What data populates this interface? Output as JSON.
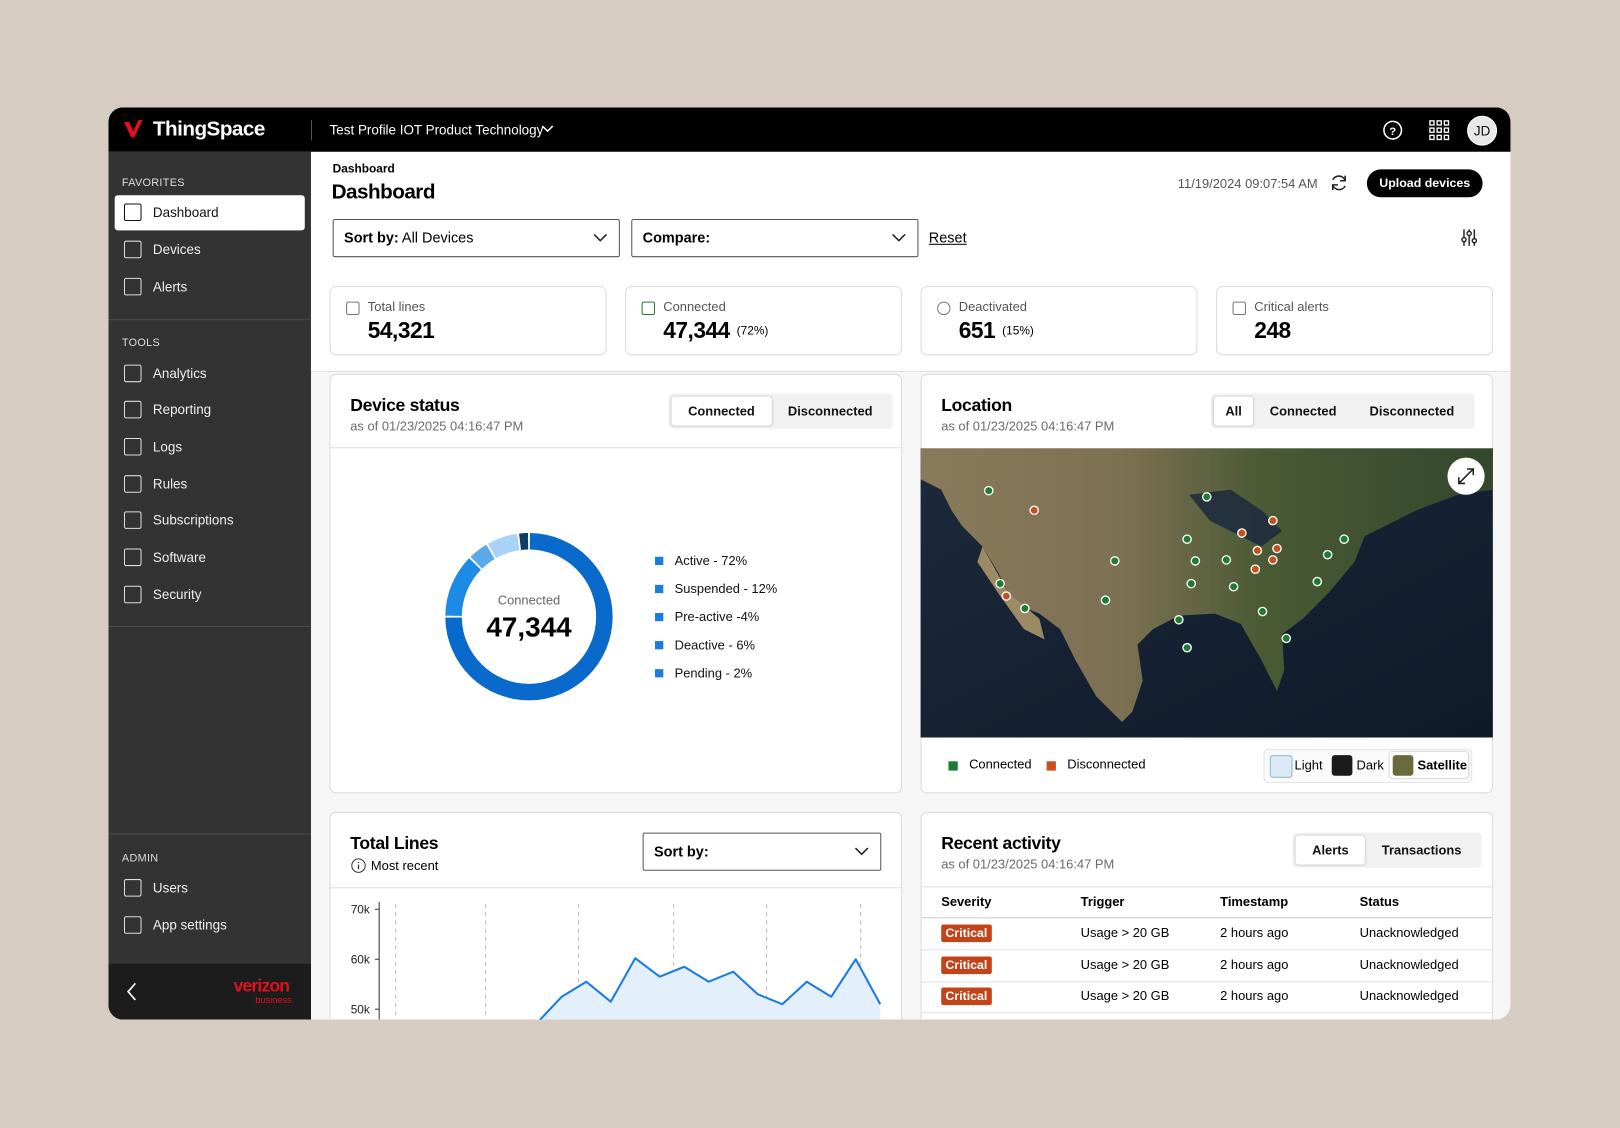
{
  "header": {
    "brand": "ThingSpace",
    "profile": "Test Profile IOT Product Technology",
    "avatar": "JD"
  },
  "sidebar": {
    "sections": [
      {
        "title": "FAVORITES",
        "items": [
          {
            "label": "Dashboard",
            "active": true
          },
          {
            "label": "Devices"
          },
          {
            "label": "Alerts"
          }
        ]
      },
      {
        "title": "TOOLS",
        "items": [
          {
            "label": "Analytics"
          },
          {
            "label": "Reporting"
          },
          {
            "label": "Logs"
          },
          {
            "label": "Rules"
          },
          {
            "label": "Subscriptions"
          },
          {
            "label": "Software"
          },
          {
            "label": "Security"
          }
        ]
      },
      {
        "title": "ADMIN",
        "items": [
          {
            "label": "Users"
          },
          {
            "label": "App settings"
          }
        ]
      }
    ],
    "footer_brand": "verizon",
    "footer_sub": "business"
  },
  "page": {
    "breadcrumb": "Dashboard",
    "title": "Dashboard",
    "timestamp": "11/19/2024 09:07:54 AM",
    "upload": "Upload devices",
    "sort_label": "Sort by:",
    "sort_value": "All Devices",
    "compare_label": "Compare:",
    "reset": "Reset"
  },
  "stats": [
    {
      "label": "Total lines",
      "value": "54,321"
    },
    {
      "label": "Connected",
      "value": "47,344",
      "note": "(72%)"
    },
    {
      "label": "Deactivated",
      "value": "651",
      "note": "(15%)"
    },
    {
      "label": "Critical alerts",
      "value": "248"
    }
  ],
  "device_status": {
    "title": "Device status",
    "asof": "as of  01/23/2025 04:16:47 PM",
    "tabs": [
      "Connected",
      "Disconnected"
    ]
  },
  "location": {
    "title": "Location",
    "asof": "as of  01/23/2025 04:16:47 PM",
    "tabs": [
      "All",
      "Connected",
      "Disconnected"
    ],
    "legend": [
      {
        "label": "Connected",
        "color": "#1e7b34"
      },
      {
        "label": "Disconnected",
        "color": "#c8501c"
      }
    ],
    "styles": [
      "Light",
      "Dark",
      "Satellite"
    ]
  },
  "total_lines": {
    "title": "Total Lines",
    "subtitle": "Most recent",
    "sort_label": "Sort by:"
  },
  "recent": {
    "title": "Recent activity",
    "asof": "as of  01/23/2025 04:16:47 PM",
    "tabs": [
      "Alerts",
      "Transactions"
    ],
    "columns": [
      "Severity",
      "Trigger",
      "Timestamp",
      "Status"
    ],
    "rows": [
      [
        "Critical",
        "Usage > 20 GB",
        "2 hours ago",
        "Unacknowledged"
      ],
      [
        "Critical",
        "Usage > 20 GB",
        "2 hours ago",
        "Unacknowledged"
      ],
      [
        "Critical",
        "Usage > 20 GB",
        "2 hours ago",
        "Unacknowledged"
      ]
    ]
  },
  "chart_data": [
    {
      "type": "donut",
      "center_label": "Connected",
      "center_value": "47,344",
      "categories": [
        "Active - 72%",
        "Suspended - 12%",
        "Pre-active -4%",
        "Deactive - 6%",
        "Pending - 2%"
      ],
      "values": [
        72,
        12,
        4,
        6,
        2
      ],
      "colors": [
        "#0a6acb",
        "#1d8ae6",
        "#5aaae9",
        "#a9d3f6",
        "#0f3d63"
      ],
      "legend_color": "#1a7be0"
    },
    {
      "type": "line",
      "categories": [
        null,
        null,
        null,
        null,
        null,
        null,
        null,
        null,
        null,
        null,
        null,
        null,
        null,
        null,
        null
      ],
      "values": [
        47300,
        52500,
        55500,
        51500,
        60200,
        56500,
        58500,
        55500,
        57500,
        53000,
        51000,
        55500,
        52500,
        60000,
        51000
      ],
      "color": "#1a7be0",
      "ylim": [
        47000,
        71500
      ],
      "yticks": [
        {
          "value": 50000,
          "label": "50k"
        },
        {
          "value": 60000,
          "label": "60k"
        },
        {
          "value": 70000,
          "label": "70k"
        }
      ]
    }
  ]
}
